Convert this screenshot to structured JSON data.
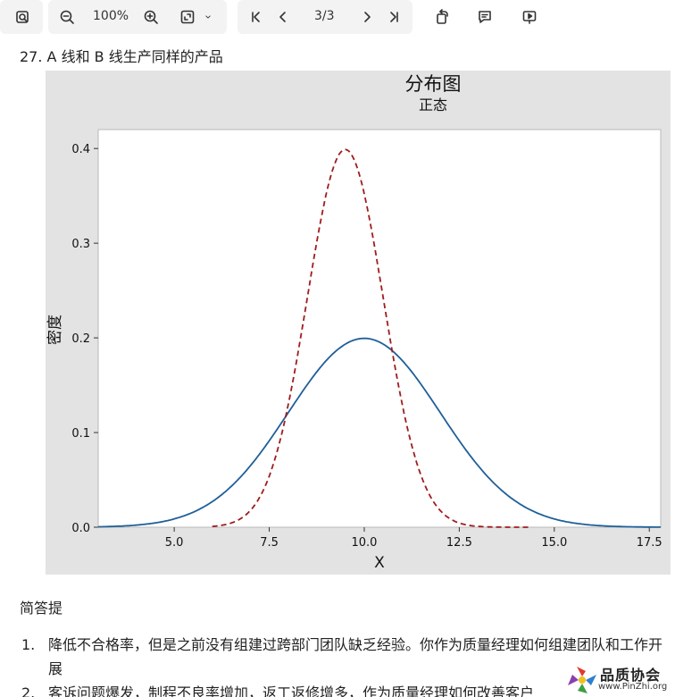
{
  "toolbar": {
    "zoom": "100%",
    "page": "3/3",
    "icons": [
      "search-doc-icon",
      "zoom-out-icon",
      "zoom-in-icon",
      "fit-page-icon",
      "chevron-down-icon",
      "first-page-icon",
      "prev-page-icon",
      "next-page-icon",
      "last-page-icon",
      "rotate-icon",
      "comment-icon",
      "present-icon"
    ]
  },
  "question_heading": "27. A 线和 B 线生产同样的产品",
  "chart_data": {
    "type": "line",
    "title": "分布图",
    "subtitle": "正态",
    "xlabel": "X",
    "ylabel": "密度",
    "xlim": [
      3.0,
      17.8
    ],
    "ylim": [
      0.0,
      0.42
    ],
    "xticks": [
      "5.0",
      "7.5",
      "10.0",
      "12.5",
      "15.0",
      "17.5"
    ],
    "xtick_values": [
      5.0,
      7.5,
      10.0,
      12.5,
      15.0,
      17.5
    ],
    "yticks": [
      "0.0",
      "0.1",
      "0.2",
      "0.3",
      "0.4"
    ],
    "ytick_values": [
      0.0,
      0.1,
      0.2,
      0.3,
      0.4
    ],
    "series": [
      {
        "mean": 10.0,
        "stdev": 2.0,
        "color": "#1f5f99",
        "style": "solid"
      },
      {
        "mean": 9.5,
        "stdev": 1.0,
        "color": "#a01c1c",
        "style": "dashed"
      }
    ],
    "grid": false
  },
  "section_title": "简答提",
  "questions": [
    {
      "num": "1.",
      "text": "降低不合格率，但是之前没有组建过跨部门团队缺乏经验。你作为质量经理如何组建团队和工作开展"
    },
    {
      "num": "2.",
      "text": "客诉问题爆发，制程不良率增加，返工返修增多，作为质量经理如何改善客户"
    }
  ],
  "logo": {
    "name": "品质协会",
    "site": "www.PinZhi.org"
  }
}
